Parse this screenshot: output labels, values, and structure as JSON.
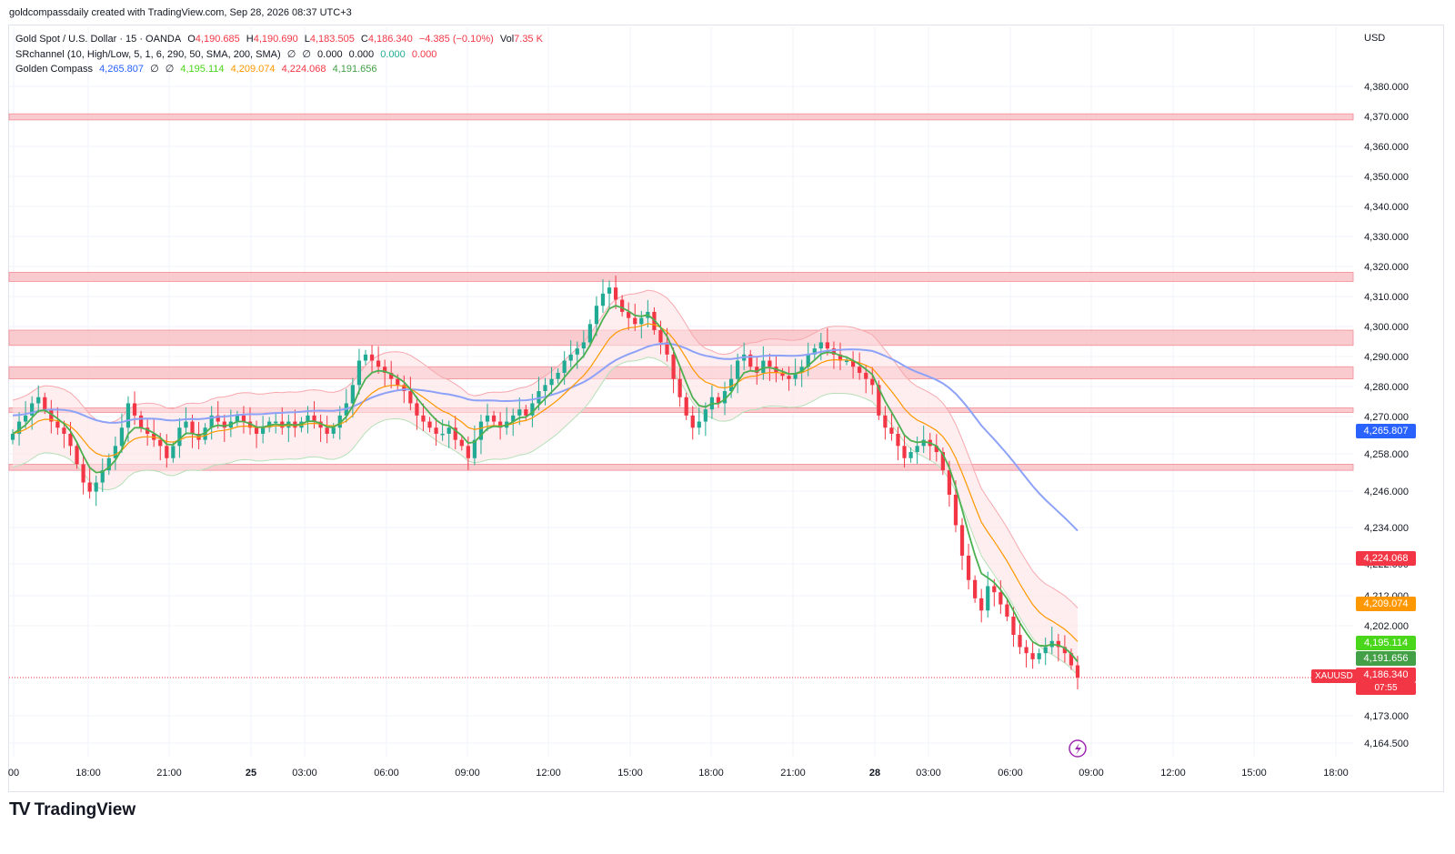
{
  "header": {
    "credit": "goldcompassdaily created with TradingView.com, Sep 28, 2026 08:37 UTC+3"
  },
  "legend": {
    "main": {
      "symbol": "Gold Spot / U.S. Dollar · 15 · OANDA",
      "o_label": "O",
      "o": "4,190.685",
      "h_label": "H",
      "h": "4,190.690",
      "l_label": "L",
      "l": "4,183.505",
      "c_label": "C",
      "c": "4,186.340",
      "change": "−4.385 (−0.10%)",
      "vol_label": "Vol",
      "vol": "7.35 K"
    },
    "srchannel": {
      "name": "SRchannel (10, High/Low, 5, 1, 6, 290, 50, SMA, 200, SMA)",
      "sym1": "∅",
      "sym2": "∅",
      "v1": "0.000",
      "v2": "0.000",
      "v3": "0.000",
      "v4": "0.000"
    },
    "golden": {
      "name": "Golden Compass",
      "v1": "4,265.807",
      "sym1": "∅",
      "sym2": "∅",
      "v2": "4,195.114",
      "v3": "4,209.074",
      "v4": "4,224.068",
      "v5": "4,191.656"
    }
  },
  "currency": "USD",
  "colors": {
    "up": "#22ab94",
    "down": "#f23645",
    "sma200": "#8da2f7",
    "ema_fast": "#4caf50",
    "ema_mid": "#ff9800",
    "band_red": "#f7a8ae",
    "band_green": "#b6e0b8",
    "sr_zone": "#f7b9bf",
    "blue_tag": "#2962ff",
    "orange_tag": "#ff9800",
    "lime_tag": "#4ad61a",
    "greentag": "#43a047"
  },
  "chart_data": {
    "type": "candlestick",
    "y_ticks": [
      "4,380.000",
      "4,370.000",
      "4,360.000",
      "4,350.000",
      "4,340.000",
      "4,330.000",
      "4,320.000",
      "4,310.000",
      "4,300.000",
      "4,290.000",
      "4,280.000",
      "4,270.000",
      "4,258.000",
      "4,246.000",
      "4,234.000",
      "4,222.000",
      "4,212.000",
      "4,202.000",
      "4,173.000",
      "4,164.500"
    ],
    "x_ticks": [
      "00",
      "18:00",
      "21:00",
      "25",
      "03:00",
      "06:00",
      "09:00",
      "12:00",
      "15:00",
      "18:00",
      "21:00",
      "28",
      "03:00",
      "06:00",
      "09:00",
      "12:00",
      "15:00",
      "18:00"
    ],
    "sr_zones": [
      [
        4369,
        4371
      ],
      [
        4316,
        4319
      ],
      [
        4295,
        4300
      ],
      [
        4284,
        4288
      ],
      [
        4273,
        4274.5
      ],
      [
        4254,
        4256
      ]
    ],
    "price_labels": [
      {
        "text": "4,265.807",
        "color": "#2962ff",
        "value": 4265.807
      },
      {
        "text": "4,224.068",
        "color": "#f23645",
        "value": 4224.068
      },
      {
        "text": "4,209.074",
        "color": "#ff9800",
        "value": 4209.074
      },
      {
        "text": "4,195.114",
        "color": "#4ad61a",
        "value": 4195.114
      },
      {
        "text": "4,191.656",
        "color": "#43a047",
        "value": 4191.656
      },
      {
        "text": "4,186.340",
        "color": "#f23645",
        "value": 4186.34
      }
    ],
    "countdown": "07:55",
    "symbol_tag": "XAUUSD",
    "close_series": [
      4266,
      4270,
      4272,
      4276,
      4278,
      4274,
      4270,
      4268,
      4266,
      4262,
      4256,
      4250,
      4247,
      4250,
      4254,
      4258,
      4262,
      4268,
      4276,
      4272,
      4268,
      4266,
      4264,
      4262,
      4258,
      4262,
      4268,
      4270,
      4266,
      4264,
      4268,
      4272,
      4270,
      4268,
      4270,
      4272,
      4270,
      4268,
      4266,
      4268,
      4270,
      4270,
      4268,
      4270,
      4268,
      4270,
      4272,
      4270,
      4268,
      4266,
      4268,
      4272,
      4276,
      4282,
      4290,
      4292,
      4290,
      4288,
      4286,
      4284,
      4282,
      4280,
      4276,
      4272,
      4270,
      4268,
      4266,
      4266,
      4268,
      4264,
      4262,
      4258,
      4264,
      4270,
      4272,
      4270,
      4268,
      4270,
      4272,
      4274,
      4272,
      4276,
      4280,
      4282,
      4284,
      4286,
      4290,
      4292,
      4294,
      4296,
      4302,
      4308,
      4312,
      4314,
      4310,
      4306,
      4304,
      4302,
      4304,
      4306,
      4300,
      4296,
      4292,
      4284,
      4278,
      4272,
      4268,
      4270,
      4274,
      4278,
      4276,
      4280,
      4284,
      4290,
      4292,
      4288,
      4286,
      4290,
      4288,
      4286,
      4285,
      4284,
      4286,
      4288,
      4292,
      4294,
      4296,
      4294,
      4292,
      4290,
      4290,
      4288,
      4286,
      4284,
      4282,
      4272,
      4268,
      4266,
      4262,
      4258,
      4260,
      4262,
      4264,
      4262,
      4260,
      4254,
      4246,
      4236,
      4226,
      4218,
      4212,
      4208,
      4216,
      4214,
      4210,
      4206,
      4200,
      4196,
      4194,
      4192,
      4194,
      4196,
      4198,
      4196,
      4194,
      4190,
      4186
    ]
  }
}
